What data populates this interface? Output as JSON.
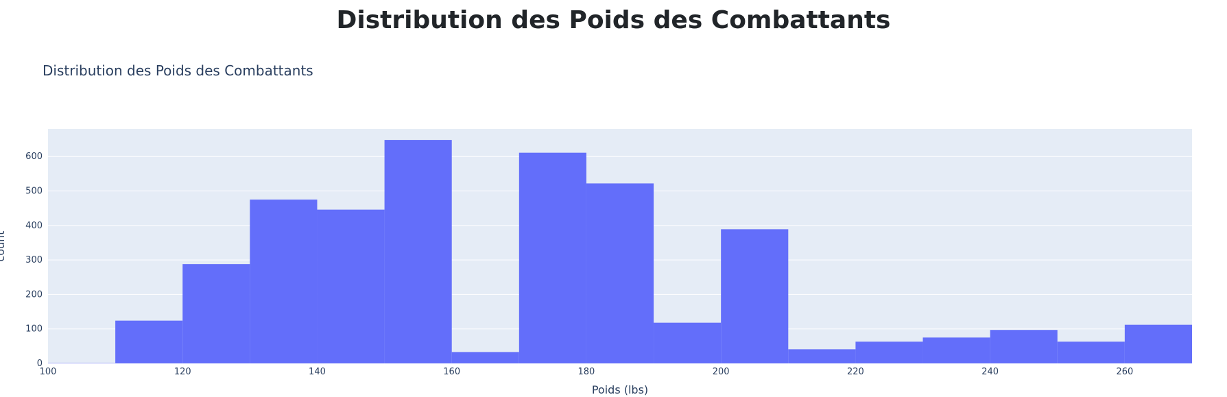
{
  "page": {
    "heading": "Distribution des Poids des Combattants"
  },
  "colors": {
    "bar": "#636efa",
    "plot_bg": "#e5ecf6",
    "grid": "#ffffff",
    "text": "#2a3f5f",
    "heading": "#212529"
  },
  "chart_data": {
    "type": "bar",
    "subtype": "histogram",
    "title": "Distribution des Poids des Combattants",
    "xlabel": "Poids (lbs)",
    "ylabel": "count",
    "xlim": [
      100,
      270
    ],
    "ylim": [
      0,
      680
    ],
    "grid": true,
    "legend": "none",
    "bin_width": 10,
    "bins": [
      {
        "start": 100,
        "end": 110,
        "count": 1
      },
      {
        "start": 110,
        "end": 120,
        "count": 124
      },
      {
        "start": 120,
        "end": 130,
        "count": 288
      },
      {
        "start": 130,
        "end": 140,
        "count": 475
      },
      {
        "start": 140,
        "end": 150,
        "count": 446
      },
      {
        "start": 150,
        "end": 160,
        "count": 648
      },
      {
        "start": 160,
        "end": 170,
        "count": 33
      },
      {
        "start": 170,
        "end": 180,
        "count": 611
      },
      {
        "start": 180,
        "end": 190,
        "count": 522
      },
      {
        "start": 190,
        "end": 200,
        "count": 118
      },
      {
        "start": 200,
        "end": 210,
        "count": 389
      },
      {
        "start": 210,
        "end": 220,
        "count": 41
      },
      {
        "start": 220,
        "end": 230,
        "count": 63
      },
      {
        "start": 230,
        "end": 240,
        "count": 75
      },
      {
        "start": 240,
        "end": 250,
        "count": 97
      },
      {
        "start": 250,
        "end": 260,
        "count": 63
      },
      {
        "start": 260,
        "end": 270,
        "count": 112
      }
    ],
    "x_ticks": [
      100,
      120,
      140,
      160,
      180,
      200,
      220,
      240,
      260
    ],
    "y_ticks": [
      0,
      100,
      200,
      300,
      400,
      500,
      600
    ]
  }
}
